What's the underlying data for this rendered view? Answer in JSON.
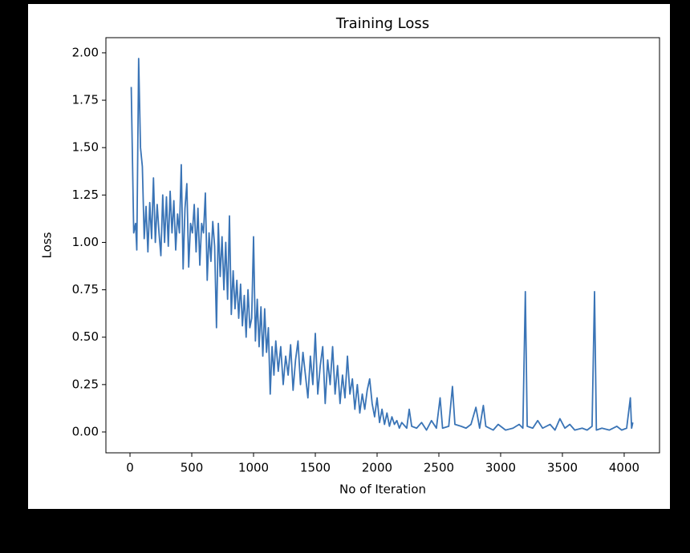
{
  "chart_data": {
    "type": "line",
    "title": "Training Loss",
    "x_label": "No of Iteration",
    "y_label": "Loss",
    "xlim": [
      -195,
      4286
    ],
    "ylim": [
      -0.11,
      2.08
    ],
    "xticks": [
      0,
      500,
      1000,
      1500,
      2000,
      2500,
      3000,
      3500,
      4000
    ],
    "yticks": [
      {
        "value": 0,
        "label": "0.00"
      },
      0.25,
      {
        "value": 0.5,
        "label": "0.50"
      },
      0.75,
      {
        "value": 1,
        "label": "1.00"
      },
      1.25,
      {
        "value": 1.5,
        "label": "1.50"
      },
      1.75,
      {
        "value": 2,
        "label": "2.00"
      }
    ],
    "grid": false,
    "x": [
      10,
      30,
      45,
      55,
      70,
      85,
      100,
      115,
      130,
      145,
      160,
      175,
      190,
      205,
      220,
      235,
      250,
      265,
      280,
      295,
      310,
      325,
      340,
      355,
      370,
      385,
      400,
      415,
      430,
      445,
      460,
      475,
      490,
      505,
      520,
      535,
      550,
      565,
      580,
      595,
      610,
      625,
      640,
      655,
      670,
      685,
      700,
      715,
      730,
      745,
      760,
      775,
      790,
      805,
      820,
      835,
      850,
      865,
      880,
      895,
      910,
      925,
      940,
      955,
      970,
      985,
      1000,
      1015,
      1030,
      1045,
      1060,
      1075,
      1090,
      1105,
      1120,
      1135,
      1150,
      1165,
      1180,
      1200,
      1220,
      1240,
      1260,
      1280,
      1300,
      1320,
      1340,
      1360,
      1380,
      1400,
      1420,
      1440,
      1460,
      1480,
      1500,
      1520,
      1540,
      1560,
      1580,
      1600,
      1620,
      1640,
      1660,
      1680,
      1700,
      1720,
      1740,
      1760,
      1780,
      1800,
      1820,
      1840,
      1860,
      1880,
      1900,
      1920,
      1940,
      1960,
      1980,
      2000,
      2020,
      2040,
      2060,
      2080,
      2100,
      2120,
      2140,
      2160,
      2180,
      2200,
      2240,
      2260,
      2280,
      2320,
      2360,
      2400,
      2440,
      2480,
      2510,
      2530,
      2580,
      2610,
      2630,
      2680,
      2720,
      2760,
      2800,
      2830,
      2860,
      2880,
      2940,
      2980,
      3040,
      3100,
      3150,
      3180,
      3200,
      3215,
      3260,
      3300,
      3340,
      3400,
      3440,
      3480,
      3520,
      3560,
      3600,
      3660,
      3700,
      3740,
      3760,
      3775,
      3820,
      3880,
      3940,
      3980,
      4020,
      4050,
      4060,
      4070
    ],
    "series": [
      {
        "name": "Loss",
        "color": "#3a74b6",
        "values": [
          1.82,
          1.05,
          1.1,
          0.96,
          1.97,
          1.5,
          1.4,
          1.02,
          1.19,
          0.95,
          1.21,
          1.02,
          1.34,
          1.0,
          1.2,
          1.05,
          0.93,
          1.25,
          1.0,
          1.24,
          0.98,
          1.27,
          1.05,
          1.22,
          0.96,
          1.15,
          1.05,
          1.41,
          0.86,
          1.18,
          1.31,
          0.87,
          1.1,
          1.05,
          1.2,
          0.95,
          1.18,
          0.88,
          1.1,
          1.05,
          1.26,
          0.8,
          1.05,
          0.9,
          1.11,
          0.98,
          0.55,
          1.1,
          0.82,
          1.03,
          0.75,
          1.0,
          0.7,
          1.14,
          0.62,
          0.85,
          0.65,
          0.8,
          0.6,
          0.78,
          0.56,
          0.72,
          0.5,
          0.75,
          0.55,
          0.6,
          1.03,
          0.48,
          0.7,
          0.45,
          0.66,
          0.4,
          0.65,
          0.42,
          0.55,
          0.2,
          0.45,
          0.3,
          0.48,
          0.32,
          0.45,
          0.25,
          0.4,
          0.3,
          0.46,
          0.22,
          0.38,
          0.48,
          0.25,
          0.42,
          0.3,
          0.18,
          0.4,
          0.25,
          0.52,
          0.2,
          0.35,
          0.45,
          0.15,
          0.38,
          0.25,
          0.45,
          0.2,
          0.35,
          0.15,
          0.3,
          0.18,
          0.4,
          0.2,
          0.28,
          0.12,
          0.25,
          0.1,
          0.2,
          0.12,
          0.22,
          0.28,
          0.15,
          0.08,
          0.18,
          0.05,
          0.12,
          0.04,
          0.1,
          0.03,
          0.08,
          0.04,
          0.06,
          0.02,
          0.05,
          0.02,
          0.12,
          0.03,
          0.02,
          0.05,
          0.01,
          0.06,
          0.02,
          0.18,
          0.02,
          0.03,
          0.24,
          0.04,
          0.03,
          0.02,
          0.04,
          0.13,
          0.02,
          0.14,
          0.03,
          0.01,
          0.04,
          0.01,
          0.02,
          0.04,
          0.02,
          0.74,
          0.03,
          0.02,
          0.06,
          0.02,
          0.04,
          0.01,
          0.07,
          0.02,
          0.04,
          0.01,
          0.02,
          0.01,
          0.03,
          0.74,
          0.01,
          0.02,
          0.01,
          0.03,
          0.01,
          0.02,
          0.18,
          0.02,
          0.05
        ]
      }
    ]
  }
}
